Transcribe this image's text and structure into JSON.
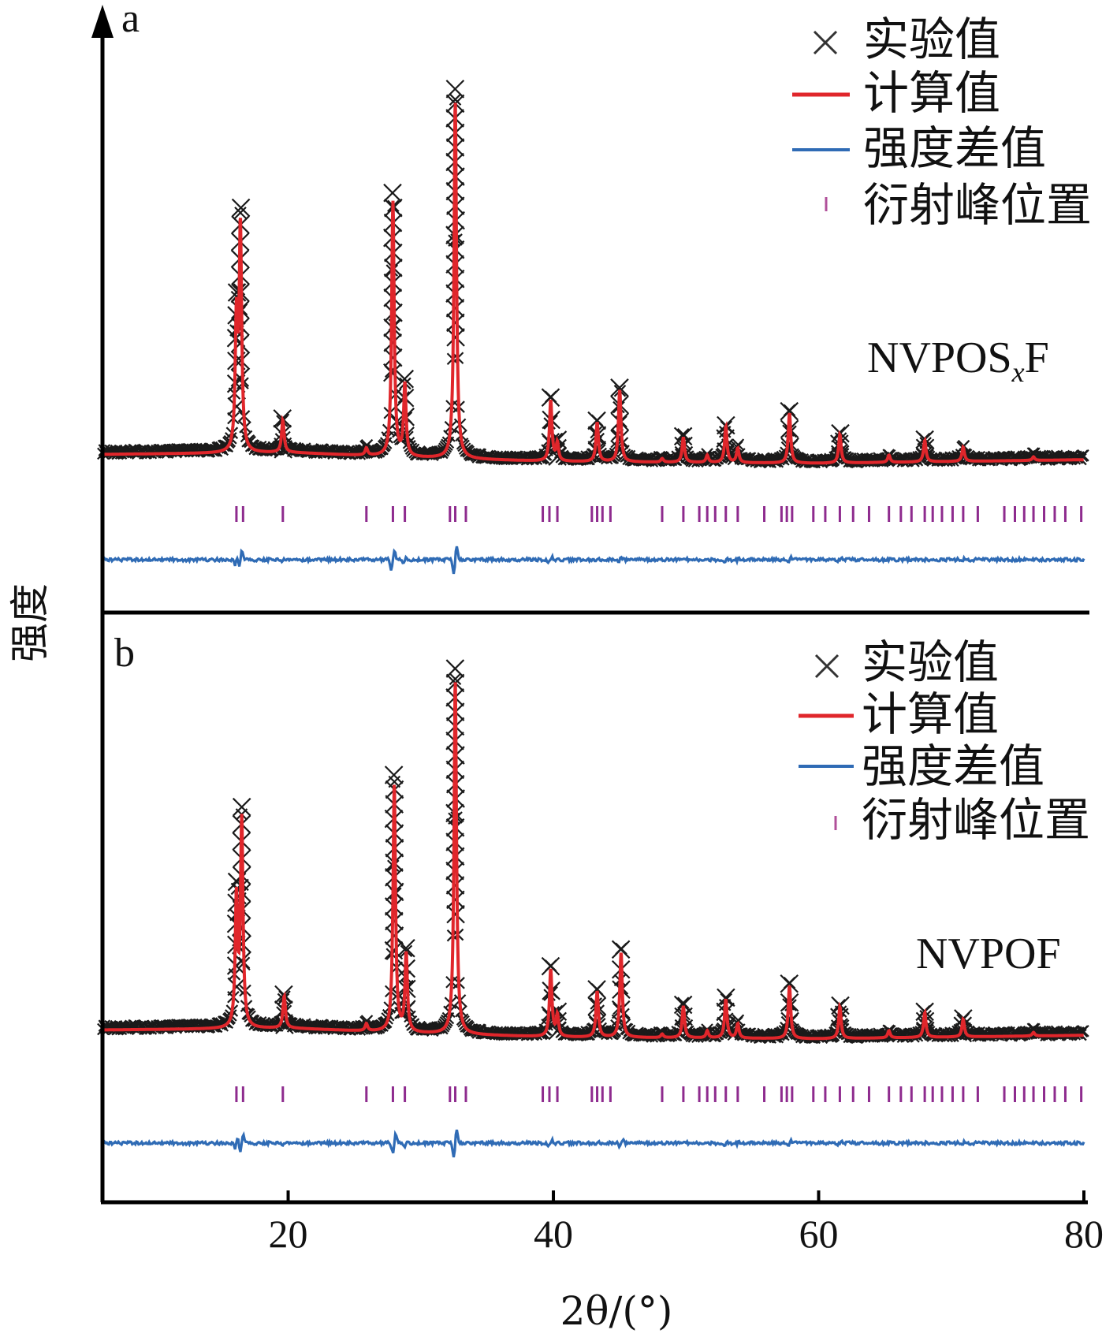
{
  "chart_data": {
    "type": "line",
    "xlabel": "2θ/(°)",
    "ylabel": "强度",
    "xlim": [
      6,
      80
    ],
    "x_ticks": [
      "20",
      "40",
      "60",
      "80"
    ],
    "x_tick_values": [
      20,
      40,
      60,
      80
    ],
    "grid": false,
    "legend_position": "top-right",
    "legend": [
      "实验值",
      "计算值",
      "强度差值",
      "衍射峰位置"
    ],
    "colors": {
      "observed": "#1a1a1a",
      "calculated": "#e0262b",
      "difference": "#2f6bb5",
      "bragg": "#8e2b8e"
    },
    "panels": [
      {
        "letter": "a",
        "sample": "NVPOS",
        "sample_sub": "x",
        "sample_suffix": "F",
        "baseline": [
          {
            "x": 6,
            "y": 0.03
          },
          {
            "x": 20,
            "y": 0.035
          },
          {
            "x": 30,
            "y": 0.02
          },
          {
            "x": 40,
            "y": 0.01
          },
          {
            "x": 60,
            "y": 0.005
          },
          {
            "x": 80,
            "y": 0.015
          }
        ],
        "peaks": [
          {
            "x": 16.4,
            "h": 0.62
          },
          {
            "x": 16.1,
            "h": 0.36
          },
          {
            "x": 19.6,
            "h": 0.09
          },
          {
            "x": 25.9,
            "h": 0.02
          },
          {
            "x": 27.9,
            "h": 0.71
          },
          {
            "x": 28.8,
            "h": 0.2
          },
          {
            "x": 32.6,
            "h": 1.0
          },
          {
            "x": 39.8,
            "h": 0.17
          },
          {
            "x": 40.3,
            "h": 0.05
          },
          {
            "x": 43.3,
            "h": 0.11
          },
          {
            "x": 45.0,
            "h": 0.2
          },
          {
            "x": 48.2,
            "h": 0.01
          },
          {
            "x": 49.8,
            "h": 0.07
          },
          {
            "x": 51.6,
            "h": 0.02
          },
          {
            "x": 53.0,
            "h": 0.1
          },
          {
            "x": 53.9,
            "h": 0.04
          },
          {
            "x": 57.8,
            "h": 0.14
          },
          {
            "x": 61.6,
            "h": 0.08
          },
          {
            "x": 65.3,
            "h": 0.02
          },
          {
            "x": 68.0,
            "h": 0.06
          },
          {
            "x": 70.9,
            "h": 0.04
          },
          {
            "x": 76.2,
            "h": 0.01
          }
        ],
        "bragg_positions": [
          16.1,
          16.6,
          19.6,
          25.9,
          27.9,
          28.8,
          32.2,
          32.6,
          33.4,
          39.2,
          39.7,
          40.3,
          42.9,
          43.3,
          43.7,
          44.3,
          48.2,
          49.8,
          51.0,
          51.6,
          52.2,
          53.0,
          53.9,
          55.9,
          57.2,
          57.6,
          58.0,
          59.6,
          60.5,
          61.6,
          62.6,
          63.8,
          65.3,
          66.2,
          67.0,
          68.0,
          68.6,
          69.3,
          70.1,
          70.9,
          72.0,
          74.0,
          74.8,
          75.5,
          76.2,
          77.0,
          77.8,
          78.6,
          79.8
        ]
      },
      {
        "letter": "b",
        "sample": "NVPOF",
        "sample_sub": "",
        "sample_suffix": "",
        "baseline": [
          {
            "x": 6,
            "y": 0.03
          },
          {
            "x": 20,
            "y": 0.035
          },
          {
            "x": 30,
            "y": 0.02
          },
          {
            "x": 40,
            "y": 0.01
          },
          {
            "x": 60,
            "y": 0.005
          },
          {
            "x": 80,
            "y": 0.015
          }
        ],
        "peaks": [
          {
            "x": 16.5,
            "h": 0.58
          },
          {
            "x": 16.1,
            "h": 0.36
          },
          {
            "x": 19.7,
            "h": 0.09
          },
          {
            "x": 25.9,
            "h": 0.02
          },
          {
            "x": 28.0,
            "h": 0.7
          },
          {
            "x": 28.9,
            "h": 0.22
          },
          {
            "x": 32.6,
            "h": 1.0
          },
          {
            "x": 39.8,
            "h": 0.19
          },
          {
            "x": 40.3,
            "h": 0.06
          },
          {
            "x": 43.3,
            "h": 0.13
          },
          {
            "x": 45.1,
            "h": 0.24
          },
          {
            "x": 48.2,
            "h": 0.01
          },
          {
            "x": 49.8,
            "h": 0.09
          },
          {
            "x": 51.6,
            "h": 0.02
          },
          {
            "x": 53.0,
            "h": 0.11
          },
          {
            "x": 53.9,
            "h": 0.04
          },
          {
            "x": 57.8,
            "h": 0.15
          },
          {
            "x": 61.6,
            "h": 0.09
          },
          {
            "x": 65.3,
            "h": 0.02
          },
          {
            "x": 68.0,
            "h": 0.07
          },
          {
            "x": 70.9,
            "h": 0.05
          },
          {
            "x": 76.2,
            "h": 0.01
          }
        ],
        "bragg_positions": [
          16.1,
          16.6,
          19.6,
          25.9,
          27.9,
          28.8,
          32.2,
          32.6,
          33.4,
          39.2,
          39.7,
          40.3,
          42.9,
          43.3,
          43.7,
          44.3,
          48.2,
          49.8,
          51.0,
          51.6,
          52.2,
          53.0,
          53.9,
          55.9,
          57.2,
          57.6,
          58.0,
          59.6,
          60.5,
          61.6,
          62.6,
          63.8,
          65.3,
          66.2,
          67.0,
          68.0,
          68.6,
          69.3,
          70.1,
          70.9,
          72.0,
          74.0,
          74.8,
          75.5,
          76.2,
          77.0,
          77.8,
          78.6,
          79.8
        ]
      }
    ]
  }
}
